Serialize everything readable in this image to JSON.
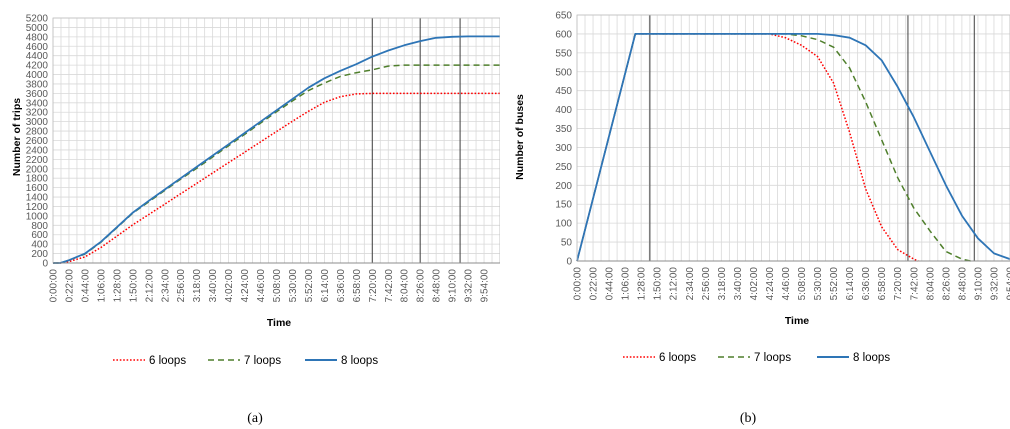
{
  "chart_data": [
    {
      "type": "line",
      "caption": "(a)",
      "xlabel": "Time",
      "ylabel": "Number of trips",
      "ylim": [
        0,
        5200
      ],
      "ystep": 200,
      "xlim_minutes": [
        0,
        616
      ],
      "categories": [
        "0:00:00",
        "0:22:00",
        "0:44:00",
        "1:06:00",
        "1:28:00",
        "1:50:00",
        "2:12:00",
        "2:34:00",
        "2:56:00",
        "3:18:00",
        "3:40:00",
        "4:02:00",
        "4:24:00",
        "4:46:00",
        "5:08:00",
        "5:30:00",
        "5:52:00",
        "6:14:00",
        "6:36:00",
        "6:58:00",
        "7:20:00",
        "7:42:00",
        "8:04:00",
        "8:26:00",
        "8:48:00",
        "9:10:00",
        "9:32:00",
        "9:54:00"
      ],
      "grid": true,
      "legend_position": "bottom",
      "vertical_markers": [
        "7:20:00",
        "8:26:00",
        "9:21:00"
      ],
      "series": [
        {
          "name": "6 loops",
          "color": "#ff0000",
          "style": "dotted",
          "x": [
            "0:00:00",
            "0:10:00",
            "0:22:00",
            "0:44:00",
            "1:06:00",
            "1:28:00",
            "1:50:00",
            "2:12:00",
            "2:34:00",
            "2:56:00",
            "3:18:00",
            "3:40:00",
            "4:02:00",
            "4:24:00",
            "4:46:00",
            "5:08:00",
            "5:30:00",
            "5:52:00",
            "6:14:00",
            "6:36:00",
            "6:58:00",
            "7:20:00",
            "7:42:00",
            "8:04:00",
            "8:26:00",
            "8:48:00",
            "9:10:00",
            "9:32:00",
            "9:54:00",
            "10:16:00"
          ],
          "y": [
            0,
            0,
            30,
            130,
            330,
            570,
            810,
            1030,
            1250,
            1470,
            1690,
            1910,
            2130,
            2350,
            2570,
            2790,
            3010,
            3220,
            3410,
            3530,
            3590,
            3600,
            3600,
            3600,
            3600,
            3600,
            3600,
            3600,
            3600,
            3600
          ]
        },
        {
          "name": "7 loops",
          "color": "#4f7f2c",
          "style": "dashed",
          "x": [
            "0:00:00",
            "0:10:00",
            "0:22:00",
            "0:44:00",
            "1:06:00",
            "1:28:00",
            "1:50:00",
            "2:12:00",
            "2:34:00",
            "2:56:00",
            "3:18:00",
            "3:40:00",
            "4:02:00",
            "4:24:00",
            "4:46:00",
            "5:08:00",
            "5:30:00",
            "5:52:00",
            "6:14:00",
            "6:36:00",
            "6:58:00",
            "7:20:00",
            "7:42:00",
            "8:04:00",
            "8:26:00",
            "8:48:00",
            "9:10:00",
            "9:32:00",
            "9:54:00",
            "10:16:00"
          ],
          "y": [
            0,
            0,
            60,
            190,
            440,
            750,
            1060,
            1300,
            1540,
            1780,
            2010,
            2250,
            2490,
            2730,
            2970,
            3210,
            3440,
            3660,
            3820,
            3960,
            4040,
            4100,
            4180,
            4200,
            4200,
            4200,
            4200,
            4200,
            4200,
            4200
          ]
        },
        {
          "name": "8 loops",
          "color": "#2e75b6",
          "style": "solid",
          "x": [
            "0:00:00",
            "0:10:00",
            "0:22:00",
            "0:44:00",
            "1:06:00",
            "1:28:00",
            "1:50:00",
            "2:12:00",
            "2:34:00",
            "2:56:00",
            "3:18:00",
            "3:40:00",
            "4:02:00",
            "4:24:00",
            "4:46:00",
            "5:08:00",
            "5:30:00",
            "5:52:00",
            "6:14:00",
            "6:36:00",
            "6:58:00",
            "7:20:00",
            "7:42:00",
            "8:04:00",
            "8:26:00",
            "8:48:00",
            "9:10:00",
            "9:32:00",
            "9:54:00",
            "10:16:00"
          ],
          "y": [
            0,
            0,
            60,
            200,
            450,
            760,
            1070,
            1320,
            1560,
            1800,
            2040,
            2280,
            2520,
            2760,
            3000,
            3240,
            3480,
            3720,
            3920,
            4080,
            4220,
            4380,
            4510,
            4620,
            4710,
            4780,
            4800,
            4810,
            4810,
            4810
          ]
        }
      ]
    },
    {
      "type": "line",
      "caption": "(b)",
      "xlabel": "Time",
      "ylabel": "Number of buses",
      "ylim": [
        0,
        650
      ],
      "ystep": 50,
      "xlim_minutes": [
        0,
        594
      ],
      "categories": [
        "0:00:00",
        "0:22:00",
        "0:44:00",
        "1:06:00",
        "1:28:00",
        "1:50:00",
        "2:12:00",
        "2:34:00",
        "2:56:00",
        "3:18:00",
        "3:40:00",
        "4:02:00",
        "4:24:00",
        "4:46:00",
        "5:08:00",
        "5:30:00",
        "5:52:00",
        "6:14:00",
        "6:36:00",
        "6:58:00",
        "7:20:00",
        "7:42:00",
        "8:04:00",
        "8:26:00",
        "8:48:00",
        "9:10:00",
        "9:32:00",
        "9:54:00"
      ],
      "grid": true,
      "legend_position": "bottom",
      "vertical_markers": [
        "1:40:00",
        "7:34:00",
        "9:05:00"
      ],
      "series": [
        {
          "name": "6 loops",
          "color": "#ff0000",
          "style": "dotted",
          "x": [
            "0:00:00",
            "1:20:00",
            "4:24:00",
            "4:46:00",
            "5:08:00",
            "5:30:00",
            "5:52:00",
            "6:14:00",
            "6:36:00",
            "6:58:00",
            "7:20:00",
            "7:42:00",
            "7:48:00"
          ],
          "y": [
            0,
            600,
            600,
            590,
            570,
            540,
            470,
            340,
            190,
            90,
            30,
            5,
            0
          ]
        },
        {
          "name": "7 loops",
          "color": "#4f7f2c",
          "style": "dashed",
          "x": [
            "0:00:00",
            "1:20:00",
            "4:46:00",
            "5:08:00",
            "5:30:00",
            "5:52:00",
            "6:14:00",
            "6:36:00",
            "6:58:00",
            "7:20:00",
            "7:42:00",
            "8:04:00",
            "8:26:00",
            "8:48:00",
            "9:00:00"
          ],
          "y": [
            0,
            600,
            600,
            595,
            585,
            565,
            510,
            420,
            320,
            220,
            140,
            80,
            25,
            5,
            0
          ]
        },
        {
          "name": "8 loops",
          "color": "#2e75b6",
          "style": "solid",
          "x": [
            "0:00:00",
            "1:20:00",
            "5:30:00",
            "5:52:00",
            "6:14:00",
            "6:36:00",
            "6:58:00",
            "7:20:00",
            "7:42:00",
            "8:04:00",
            "8:26:00",
            "8:48:00",
            "9:10:00",
            "9:32:00",
            "9:54:00"
          ],
          "y": [
            0,
            600,
            600,
            597,
            590,
            570,
            530,
            460,
            380,
            290,
            200,
            120,
            60,
            20,
            5
          ]
        }
      ]
    }
  ]
}
